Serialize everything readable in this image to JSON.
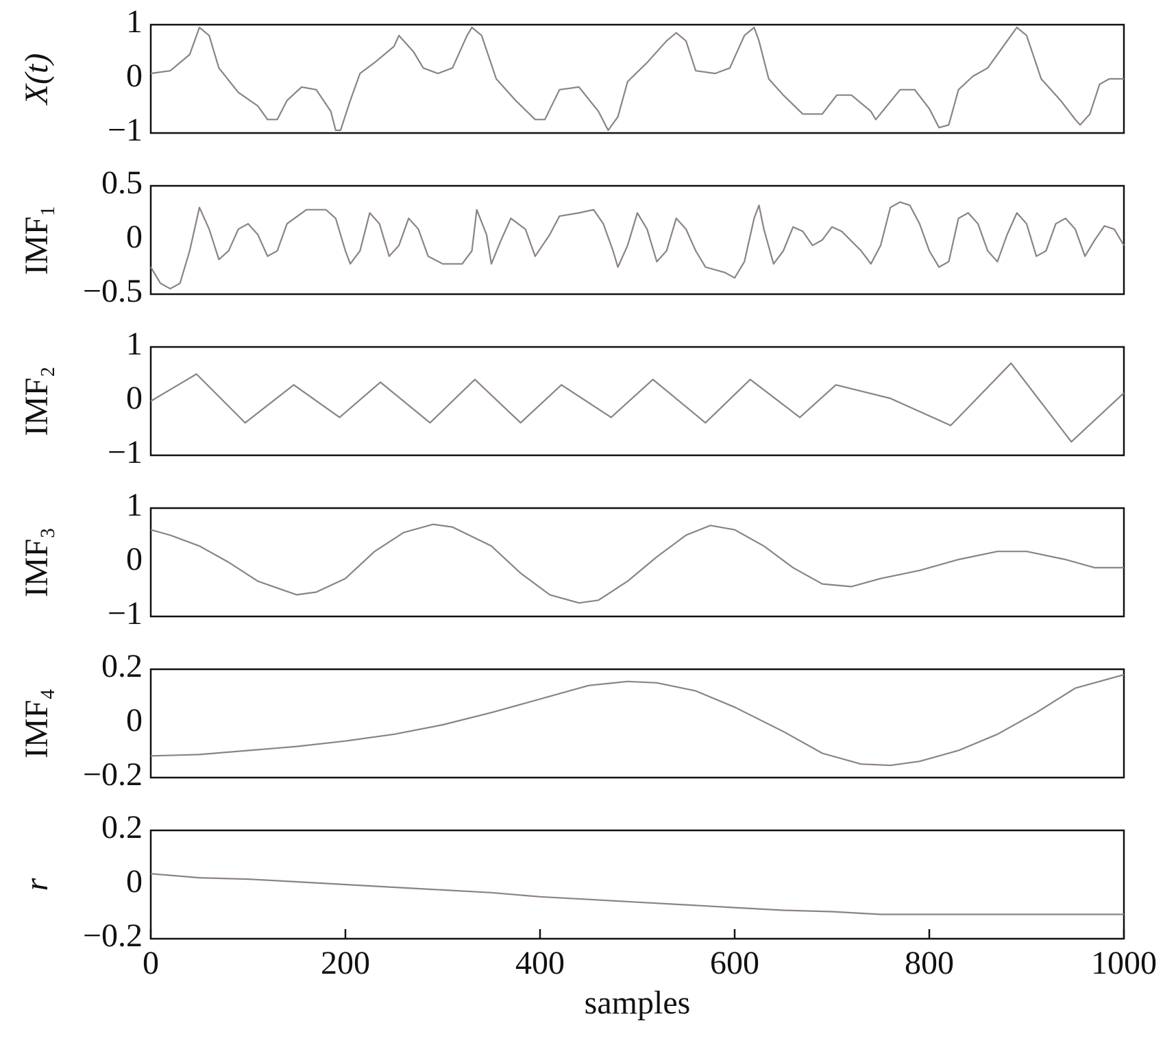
{
  "chart_data": [
    {
      "type": "line",
      "ylabel": "X(t)",
      "color": "#8c8282",
      "xlim": [
        0,
        1000
      ],
      "ylim": [
        -1,
        1
      ],
      "yticks": [
        {
          "value": -1,
          "label": "−1"
        },
        0,
        1
      ],
      "x": [
        0,
        20,
        40,
        50,
        60,
        70,
        90,
        110,
        120,
        130,
        140,
        155,
        170,
        185,
        190,
        195,
        205,
        215,
        230,
        250,
        255,
        270,
        280,
        295,
        310,
        325,
        330,
        340,
        355,
        375,
        395,
        405,
        420,
        440,
        460,
        470,
        480,
        490,
        510,
        530,
        540,
        550,
        560,
        580,
        595,
        610,
        620,
        625,
        635,
        650,
        670,
        690,
        705,
        720,
        740,
        745,
        770,
        785,
        800,
        810,
        820,
        830,
        845,
        860,
        880,
        890,
        900,
        915,
        935,
        950,
        955,
        965,
        975,
        985,
        1000
      ],
      "values": [
        0.1,
        0.15,
        0.45,
        0.95,
        0.8,
        0.2,
        -0.25,
        -0.5,
        -0.75,
        -0.75,
        -0.4,
        -0.15,
        -0.2,
        -0.6,
        -0.95,
        -0.95,
        -0.4,
        0.1,
        0.3,
        0.6,
        0.8,
        0.5,
        0.2,
        0.1,
        0.2,
        0.8,
        0.95,
        0.8,
        0.0,
        -0.4,
        -0.75,
        -0.75,
        -0.2,
        -0.15,
        -0.6,
        -0.95,
        -0.7,
        -0.05,
        0.3,
        0.7,
        0.85,
        0.7,
        0.15,
        0.1,
        0.2,
        0.8,
        0.95,
        0.7,
        0.0,
        -0.3,
        -0.65,
        -0.65,
        -0.3,
        -0.3,
        -0.6,
        -0.75,
        -0.2,
        -0.2,
        -0.55,
        -0.9,
        -0.85,
        -0.2,
        0.05,
        0.2,
        0.7,
        0.95,
        0.8,
        0.0,
        -0.4,
        -0.75,
        -0.85,
        -0.65,
        -0.1,
        0.0,
        0.0
      ]
    },
    {
      "type": "line",
      "ylabel": "IMF₁",
      "color": "#8c8282",
      "xlim": [
        0,
        1000
      ],
      "ylim": [
        -0.5,
        0.5
      ],
      "yticks": [
        {
          "value": -0.5,
          "label": "−0.5"
        },
        0,
        0.5
      ],
      "x": [
        0,
        10,
        20,
        30,
        40,
        50,
        60,
        70,
        80,
        90,
        100,
        110,
        120,
        130,
        140,
        160,
        180,
        190,
        200,
        205,
        215,
        225,
        235,
        245,
        255,
        265,
        275,
        285,
        300,
        320,
        330,
        335,
        345,
        350,
        360,
        370,
        385,
        395,
        410,
        420,
        440,
        455,
        465,
        475,
        480,
        490,
        500,
        510,
        520,
        530,
        540,
        550,
        560,
        570,
        590,
        600,
        610,
        620,
        625,
        630,
        640,
        650,
        660,
        670,
        680,
        690,
        700,
        710,
        730,
        740,
        750,
        760,
        770,
        780,
        790,
        800,
        810,
        820,
        830,
        840,
        850,
        860,
        870,
        880,
        890,
        900,
        910,
        920,
        930,
        940,
        950,
        960,
        970,
        980,
        990,
        1000
      ],
      "values": [
        -0.25,
        -0.4,
        -0.45,
        -0.4,
        -0.1,
        0.3,
        0.1,
        -0.18,
        -0.1,
        0.1,
        0.15,
        0.05,
        -0.15,
        -0.1,
        0.15,
        0.28,
        0.28,
        0.2,
        -0.1,
        -0.22,
        -0.1,
        0.25,
        0.15,
        -0.15,
        -0.05,
        0.2,
        0.1,
        -0.15,
        -0.22,
        -0.22,
        -0.1,
        0.28,
        0.05,
        -0.22,
        0.0,
        0.2,
        0.1,
        -0.15,
        0.05,
        0.22,
        0.25,
        0.28,
        0.15,
        -0.1,
        -0.25,
        -0.05,
        0.25,
        0.1,
        -0.2,
        -0.1,
        0.2,
        0.1,
        -0.1,
        -0.25,
        -0.3,
        -0.35,
        -0.2,
        0.2,
        0.32,
        0.1,
        -0.22,
        -0.1,
        0.12,
        0.08,
        -0.05,
        0.0,
        0.12,
        0.08,
        -0.1,
        -0.22,
        -0.05,
        0.3,
        0.35,
        0.32,
        0.15,
        -0.1,
        -0.25,
        -0.2,
        0.2,
        0.25,
        0.15,
        -0.1,
        -0.2,
        0.05,
        0.25,
        0.15,
        -0.15,
        -0.1,
        0.15,
        0.2,
        0.1,
        -0.15,
        0.0,
        0.13,
        0.1,
        -0.05
      ]
    },
    {
      "type": "line",
      "ylabel": "IMF₂",
      "color": "#8c8282",
      "xlim": [
        0,
        1000
      ],
      "ylim": [
        -1,
        1
      ],
      "yticks": [
        {
          "value": -1,
          "label": "−1"
        },
        0,
        1
      ],
      "x": [
        0,
        47,
        97,
        147,
        194,
        236,
        287,
        333,
        380,
        422,
        473,
        516,
        570,
        616,
        667,
        704,
        760,
        822,
        884,
        946,
        1000
      ],
      "values": [
        0.0,
        0.5,
        -0.4,
        0.3,
        -0.3,
        0.35,
        -0.4,
        0.4,
        -0.4,
        0.3,
        -0.3,
        0.4,
        -0.4,
        0.4,
        -0.3,
        0.3,
        0.05,
        -0.45,
        0.7,
        -0.75,
        0.15
      ]
    },
    {
      "type": "line",
      "ylabel": "IMF₃",
      "color": "#8c8282",
      "xlim": [
        0,
        1000
      ],
      "ylim": [
        -1,
        1
      ],
      "yticks": [
        {
          "value": -1,
          "label": "−1"
        },
        0,
        1
      ],
      "x": [
        0,
        20,
        50,
        80,
        110,
        150,
        170,
        200,
        230,
        260,
        290,
        310,
        350,
        380,
        410,
        440,
        460,
        490,
        520,
        550,
        575,
        600,
        630,
        660,
        690,
        720,
        750,
        790,
        830,
        870,
        900,
        940,
        970,
        1000
      ],
      "values": [
        0.6,
        0.5,
        0.3,
        0.0,
        -0.35,
        -0.6,
        -0.55,
        -0.3,
        0.2,
        0.55,
        0.7,
        0.65,
        0.3,
        -0.2,
        -0.6,
        -0.75,
        -0.7,
        -0.35,
        0.1,
        0.5,
        0.68,
        0.6,
        0.3,
        -0.1,
        -0.4,
        -0.45,
        -0.3,
        -0.15,
        0.05,
        0.2,
        0.2,
        0.05,
        -0.1,
        -0.1
      ]
    },
    {
      "type": "line",
      "ylabel": "IMF₄",
      "color": "#8c8282",
      "xlim": [
        0,
        1000
      ],
      "ylim": [
        -0.2,
        0.2
      ],
      "yticks": [
        {
          "value": -0.2,
          "label": "−0.2"
        },
        0,
        0.2
      ],
      "x": [
        0,
        50,
        100,
        150,
        200,
        250,
        300,
        350,
        400,
        450,
        490,
        520,
        560,
        600,
        650,
        690,
        730,
        760,
        790,
        830,
        870,
        910,
        950,
        1000
      ],
      "values": [
        -0.12,
        -0.115,
        -0.1,
        -0.085,
        -0.065,
        -0.04,
        -0.005,
        0.04,
        0.09,
        0.14,
        0.155,
        0.15,
        0.12,
        0.06,
        -0.03,
        -0.11,
        -0.15,
        -0.155,
        -0.14,
        -0.1,
        -0.04,
        0.04,
        0.13,
        0.18
      ]
    },
    {
      "type": "line",
      "ylabel": "r",
      "color": "#8c8282",
      "xlim": [
        0,
        1000
      ],
      "ylim": [
        -0.2,
        0.2
      ],
      "yticks": [
        {
          "value": -0.2,
          "label": "−0.2"
        },
        0,
        0.2
      ],
      "xlabel": "samples",
      "xticks": [
        0,
        200,
        400,
        600,
        800,
        1000
      ],
      "x": [
        0,
        50,
        100,
        150,
        200,
        250,
        300,
        350,
        400,
        450,
        500,
        550,
        600,
        650,
        700,
        750,
        800,
        850,
        900,
        950,
        1000
      ],
      "values": [
        0.04,
        0.025,
        0.02,
        0.01,
        0.0,
        -0.01,
        -0.02,
        -0.03,
        -0.045,
        -0.055,
        -0.065,
        -0.075,
        -0.085,
        -0.095,
        -0.1,
        -0.11,
        -0.11,
        -0.11,
        -0.11,
        -0.11,
        -0.11
      ]
    }
  ]
}
